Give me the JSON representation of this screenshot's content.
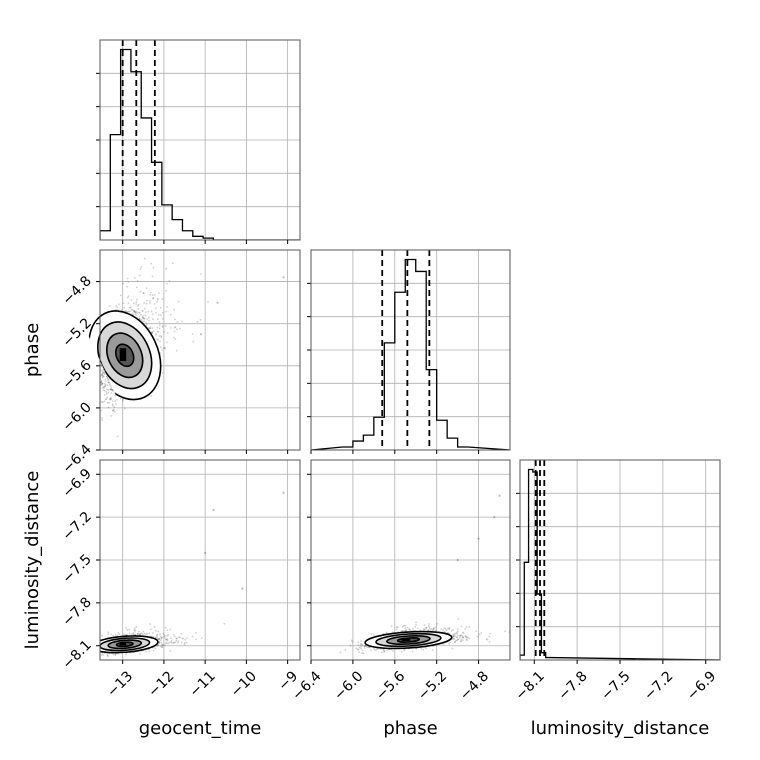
{
  "chart_data": {
    "type": "corner",
    "parameters": [
      "geocent_time",
      "phase",
      "luminosity_distance"
    ],
    "axis_labels": {
      "x": [
        "geocent_time",
        "phase",
        "luminosity_distance"
      ],
      "y": [
        "phase",
        "luminosity_distance"
      ]
    },
    "grid": true,
    "parameter_info": [
      {
        "name": "geocent_time",
        "range": [
          -13.55,
          -8.7
        ],
        "ticks": [
          -13,
          -12,
          -11,
          -10,
          -9
        ],
        "tick_labels": [
          "−13",
          "−12",
          "−11",
          "−10",
          "−9"
        ],
        "quantiles": [
          -13.0,
          -12.67,
          -12.22
        ],
        "histogram": {
          "bin_width": 0.25,
          "start": -13.55,
          "counts": [
            5,
            57,
            103,
            91,
            66,
            42,
            19,
            11,
            5,
            2,
            1,
            0,
            0,
            0,
            0,
            0,
            0,
            0,
            0
          ]
        }
      },
      {
        "name": "phase",
        "range": [
          -6.4,
          -4.5
        ],
        "ticks": [
          -6.4,
          -6.0,
          -5.6,
          -5.2,
          -4.8
        ],
        "tick_labels": [
          "−6.4",
          "−6.0",
          "−5.6",
          "−5.2",
          "−4.8"
        ],
        "quantiles": [
          -5.72,
          -5.48,
          -5.27
        ],
        "histogram": {
          "bin_width": 0.1,
          "start": -6.1,
          "counts": [
            1,
            3,
            5,
            11,
            36,
            53,
            64,
            60,
            27,
            10,
            4,
            1
          ]
        }
      },
      {
        "name": "luminosity_distance",
        "range": [
          -8.2,
          -6.8
        ],
        "ticks": [
          -8.1,
          -7.8,
          -7.5,
          -7.2,
          -6.9
        ],
        "tick_labels": [
          "−8.1",
          "−7.8",
          "−7.5",
          "−7.2",
          "−6.9"
        ],
        "quantiles": [
          -8.09,
          -8.06,
          -8.03
        ],
        "histogram": {
          "bin_width": 0.03,
          "start": -8.2,
          "counts": [
            2,
            40,
            78,
            77,
            27,
            3,
            1
          ]
        }
      }
    ],
    "density_panels": [
      {
        "x": "geocent_time",
        "y": "phase",
        "peak": [
          -12.95,
          -5.5
        ],
        "sigma": [
          0.35,
          0.22
        ],
        "correlation": 0.55,
        "contour_levels_sigma": [
          0.5,
          1.0,
          1.5,
          2.0
        ],
        "outliers": [
          [
            -10.7,
            -5.0
          ],
          [
            -9.1,
            -4.76
          ],
          [
            -11.1,
            -5.3
          ]
        ]
      },
      {
        "x": "geocent_time",
        "y": "luminosity_distance",
        "peak": [
          -12.95,
          -8.09
        ],
        "sigma": [
          0.35,
          0.028
        ],
        "correlation": 0.45,
        "contour_levels_sigma": [
          0.5,
          1.0,
          1.5,
          2.0
        ],
        "outliers": [
          [
            -10.8,
            -7.15
          ],
          [
            -9.1,
            -7.03
          ],
          [
            -10.1,
            -7.7
          ],
          [
            -11.0,
            -7.45
          ]
        ]
      },
      {
        "x": "phase",
        "y": "luminosity_distance",
        "peak": [
          -5.47,
          -8.06
        ],
        "sigma": [
          0.18,
          0.028
        ],
        "correlation": 0.5,
        "contour_levels_sigma": [
          0.5,
          1.0,
          1.5,
          2.0
        ],
        "outliers": [
          [
            -4.6,
            -7.05
          ],
          [
            -4.65,
            -7.2
          ],
          [
            -4.8,
            -7.35
          ],
          [
            -5.0,
            -7.5
          ]
        ]
      }
    ]
  }
}
